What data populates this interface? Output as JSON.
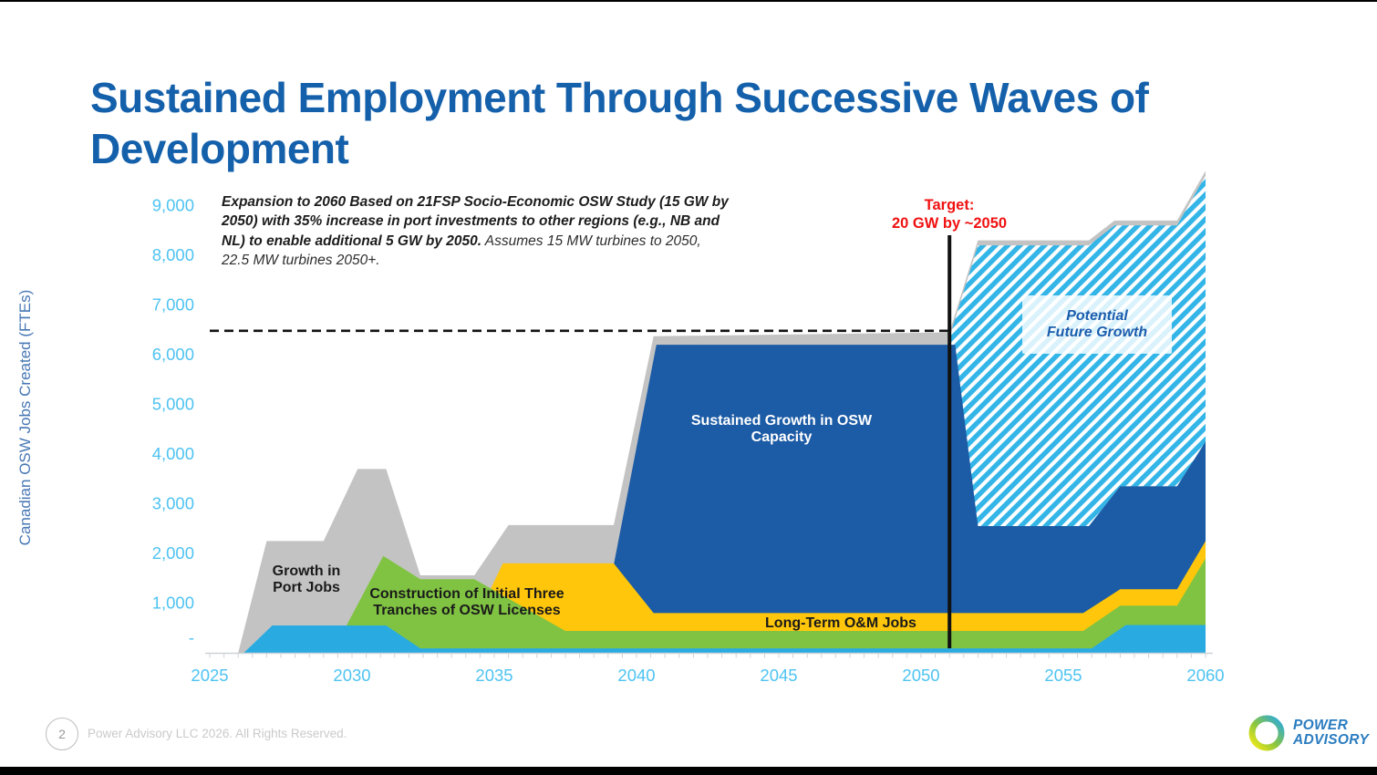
{
  "slide": {
    "title": "Sustained Employment Through Successive Waves of Development"
  },
  "annotation": {
    "bold_part": "Expansion to 2060 Based on 21FSP Socio-Economic OSW Study (15 GW by 2050) with 35% increase in port investments to other regions (e.g., NB and NL) to enable additional 5 GW by 2050.",
    "regular_part": " Assumes 15 MW turbines to 2050, 22.5 MW turbines 2050+."
  },
  "target_label": {
    "line1": "Target:",
    "line2": "20 GW by ~2050"
  },
  "footer": {
    "page_number": "2",
    "copyright": "Power Advisory LLC 2026. All Rights Reserved."
  },
  "logo": {
    "line1": "POWER",
    "line2": "ADVISORY"
  },
  "chart_data": {
    "type": "area",
    "title": "",
    "xlabel": "",
    "ylabel": "Canadian OSW Jobs Created (FTEs)",
    "xlim": [
      2025,
      2060
    ],
    "ylim": [
      0,
      9750
    ],
    "grid": false,
    "legend": "none (labels drawn on areas)",
    "x_ticks": [
      2025,
      2030,
      2035,
      2040,
      2045,
      2050,
      2055,
      2060
    ],
    "y_ticks": [
      {
        "label": "9,000",
        "value": 9000
      },
      {
        "label": "8,000",
        "value": 8000
      },
      {
        "label": "7,000",
        "value": 7000
      },
      {
        "label": "6,000",
        "value": 6000
      },
      {
        "label": "5,000",
        "value": 5000
      },
      {
        "label": "4,000",
        "value": 4000
      },
      {
        "label": "3,000",
        "value": 3000
      },
      {
        "label": "2,000",
        "value": 2000
      },
      {
        "label": "1,000",
        "value": 1000
      },
      {
        "label": "-",
        "value": 300
      }
    ],
    "colors": {
      "gray": "#C3C3C3",
      "cyan": "#29ABE2",
      "green": "#80C342",
      "yellow": "#FFC60B",
      "dark_blue": "#1C5BA5",
      "hatch_stripe": "#33B5E8",
      "target_red": "#F01111",
      "line_black": "#111111",
      "axis_gray": "#CDD3D8",
      "tick_label_blue": "#4EC3F2",
      "axis_title_blue": "#4677B5",
      "title_blue": "#1460AB"
    },
    "area_labels": {
      "gray": "Growth in Port Jobs",
      "green": "Construction of Initial Three Tranches of OSW Licenses",
      "dark_blue": "Sustained Growth in OSW Capacity",
      "yellow": "Long-Term O&M Jobs",
      "hatch": "Potential Future Growth"
    },
    "dashed_target_line": {
      "value": 6480,
      "from_year": 2025,
      "to_year": 2051
    },
    "vertical_line": {
      "year": 2051
    },
    "series": [
      {
        "id": "port-jobs-total-envelope",
        "name": "Growth in Port Jobs (total employment envelope)",
        "fill": "gray",
        "closed": false,
        "points": [
          [
            2026,
            0
          ],
          [
            2027,
            2250
          ],
          [
            2029,
            2250
          ],
          [
            2030.2,
            3700
          ],
          [
            2031.2,
            3700
          ],
          [
            2032.4,
            1560
          ],
          [
            2034.3,
            1560
          ],
          [
            2035.5,
            2570
          ],
          [
            2039.2,
            2570
          ],
          [
            2040.6,
            6370
          ],
          [
            2051,
            6450
          ],
          [
            2052,
            8300
          ],
          [
            2055.9,
            8300
          ],
          [
            2056.8,
            8700
          ],
          [
            2059,
            8700
          ],
          [
            2060,
            9700
          ],
          [
            2060,
            0
          ]
        ]
      },
      {
        "id": "potential-future-growth",
        "name": "Potential Future Growth",
        "fill": "hatch",
        "closed": true,
        "points": [
          [
            2051,
            6350
          ],
          [
            2052,
            8200
          ],
          [
            2055.9,
            8200
          ],
          [
            2056.8,
            8600
          ],
          [
            2059,
            8600
          ],
          [
            2060,
            9600
          ],
          [
            2060,
            4250
          ],
          [
            2059,
            3350
          ],
          [
            2057,
            3350
          ],
          [
            2055.9,
            2550
          ],
          [
            2052,
            2550
          ],
          [
            2051,
            6200
          ]
        ]
      },
      {
        "id": "sustained-growth-osw-capacity",
        "name": "Sustained Growth in OSW Capacity",
        "fill": "dark_blue",
        "closed": false,
        "points": [
          [
            2038.6,
            0
          ],
          [
            2040.7,
            6200
          ],
          [
            2051.2,
            6200
          ],
          [
            2052,
            2550
          ],
          [
            2055.9,
            2550
          ],
          [
            2057,
            3350
          ],
          [
            2059,
            3350
          ],
          [
            2060,
            4250
          ],
          [
            2060,
            0
          ]
        ]
      },
      {
        "id": "long-term-om-jobs",
        "name": "Long-Term O&M Jobs",
        "fill": "yellow",
        "closed": false,
        "points": [
          [
            2033.8,
            0
          ],
          [
            2035.3,
            1800
          ],
          [
            2039.2,
            1800
          ],
          [
            2040.6,
            800
          ],
          [
            2055.7,
            800
          ],
          [
            2057,
            1280
          ],
          [
            2059,
            1280
          ],
          [
            2060,
            2250
          ],
          [
            2060,
            0
          ]
        ]
      },
      {
        "id": "construction-initial-tranches",
        "name": "Construction of Initial Three Tranches of OSW Licenses",
        "fill": "green",
        "closed": false,
        "points": [
          [
            2029.3,
            0
          ],
          [
            2031.1,
            1950
          ],
          [
            2032.4,
            1480
          ],
          [
            2034.3,
            1480
          ],
          [
            2037.5,
            440
          ],
          [
            2055.7,
            440
          ],
          [
            2057,
            950
          ],
          [
            2059,
            950
          ],
          [
            2060,
            1900
          ],
          [
            2060,
            0
          ]
        ]
      },
      {
        "id": "early-development-unlabeled",
        "name": "(unlabeled bottom band)",
        "fill": "cyan",
        "closed": false,
        "points": [
          [
            2026.2,
            0
          ],
          [
            2027.2,
            550
          ],
          [
            2031.2,
            550
          ],
          [
            2032.4,
            90
          ],
          [
            2056,
            90
          ],
          [
            2057.2,
            560
          ],
          [
            2060,
            560
          ],
          [
            2060,
            0
          ]
        ]
      }
    ]
  }
}
